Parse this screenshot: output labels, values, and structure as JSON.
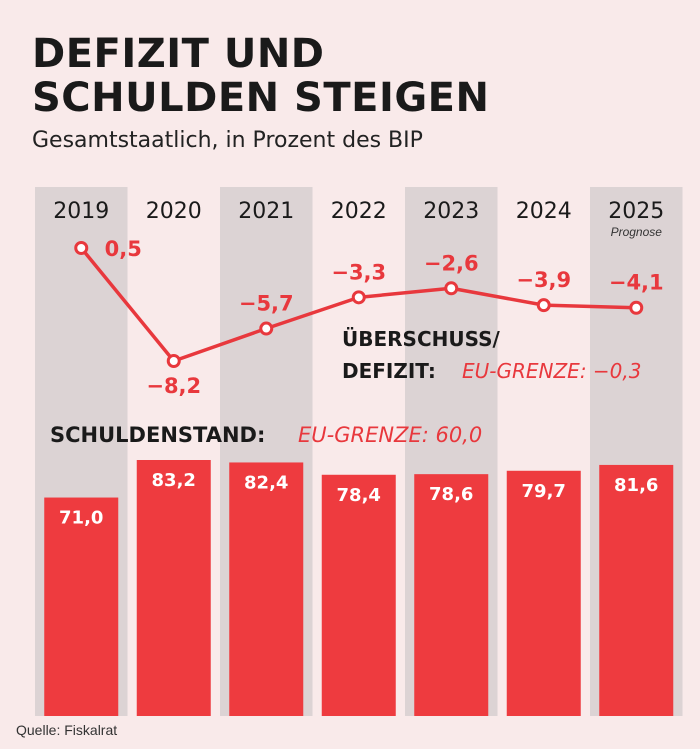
{
  "title_line1": "DEFIZIT UND",
  "title_line2": "SCHULDEN STEIGEN",
  "subtitle": "Gesamtstaatlich, in Prozent des BIP",
  "source": "Quelle: Fiskalrat",
  "colors": {
    "accent": "#e8383d",
    "bar": "#ee3b3f",
    "background": "#f9eaea",
    "column_shade": "#dcd3d4",
    "text": "#1a1a1a"
  },
  "chart_data": [
    {
      "type": "line",
      "title": "ÜBERSCHUSS/ DEFIZIT:",
      "annotation": "EU-GRENZE: −0,3",
      "x": [
        "2019",
        "2020",
        "2021",
        "2022",
        "2023",
        "2024",
        "2025"
      ],
      "x_note": {
        "2025": "Prognose"
      },
      "values": [
        0.5,
        -8.2,
        -5.7,
        -3.3,
        -2.6,
        -3.9,
        -4.1
      ],
      "labels": [
        "0,5",
        "−8,2",
        "−5,7",
        "−3,3",
        "−2,6",
        "−3,9",
        "−4,1"
      ],
      "ylim": [
        -8.2,
        0.5
      ],
      "grid": false
    },
    {
      "type": "bar",
      "title": "SCHULDENSTAND:",
      "annotation": "EU-GRENZE: 60,0",
      "categories": [
        "2019",
        "2020",
        "2021",
        "2022",
        "2023",
        "2024",
        "2025"
      ],
      "values": [
        71.0,
        83.2,
        82.4,
        78.4,
        78.6,
        79.7,
        81.6
      ],
      "labels": [
        "71,0",
        "83,2",
        "82,4",
        "78,4",
        "78,6",
        "79,7",
        "81,6"
      ],
      "ylim": [
        0,
        83.2
      ],
      "grid": false
    }
  ]
}
